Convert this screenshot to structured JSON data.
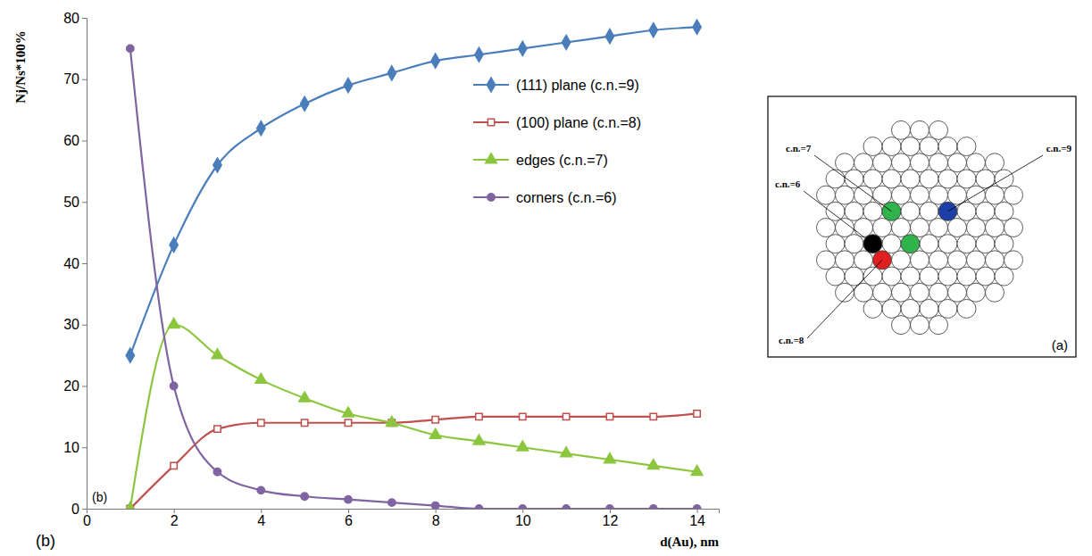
{
  "chart_data": {
    "type": "line",
    "x_label": "d(Au), nm",
    "y_label": "Nj/Ns*100%",
    "annotations": [
      "(b)",
      "(b)"
    ],
    "x": [
      1,
      2,
      3,
      4,
      5,
      6,
      7,
      8,
      9,
      10,
      11,
      12,
      13,
      14
    ],
    "series": [
      {
        "name": "(111) plane (c.n.=9)",
        "color": "#4a7ebb",
        "marker": "diamond",
        "values": [
          25,
          43,
          56,
          62,
          66,
          69,
          71,
          73,
          74,
          75,
          76,
          77,
          78,
          78.5
        ]
      },
      {
        "name": "(100) plane (c.n.=8)",
        "color": "#c0504d",
        "marker": "square",
        "values": [
          0,
          7,
          13,
          14,
          14,
          14,
          14,
          14.5,
          15,
          15,
          15,
          15,
          15,
          15.5
        ]
      },
      {
        "name": "edges (c.n.=7)",
        "color": "#8cc63f",
        "marker": "triangle",
        "values": [
          0,
          30,
          25,
          21,
          18,
          15.5,
          14,
          12,
          11,
          10,
          9,
          8,
          7,
          6
        ]
      },
      {
        "name": "corners (c.n.=6)",
        "color": "#8064a2",
        "marker": "circle",
        "values": [
          75,
          20,
          6,
          3,
          2,
          1.5,
          1,
          0.5,
          0,
          0,
          0,
          0,
          0,
          0
        ]
      }
    ],
    "xlim": [
      0,
      14.5
    ],
    "xticks": [
      0,
      2,
      4,
      6,
      8,
      10,
      12,
      14
    ],
    "ylim": [
      0,
      80
    ],
    "yticks": [
      0,
      10,
      20,
      30,
      40,
      50,
      60,
      70,
      80
    ],
    "grid": false,
    "legend": "right"
  },
  "inset": {
    "labels": [
      "c.n.=7",
      "c.n.=6",
      "c.n.=9",
      "c.n.=8"
    ],
    "panel_label": "(a)"
  }
}
